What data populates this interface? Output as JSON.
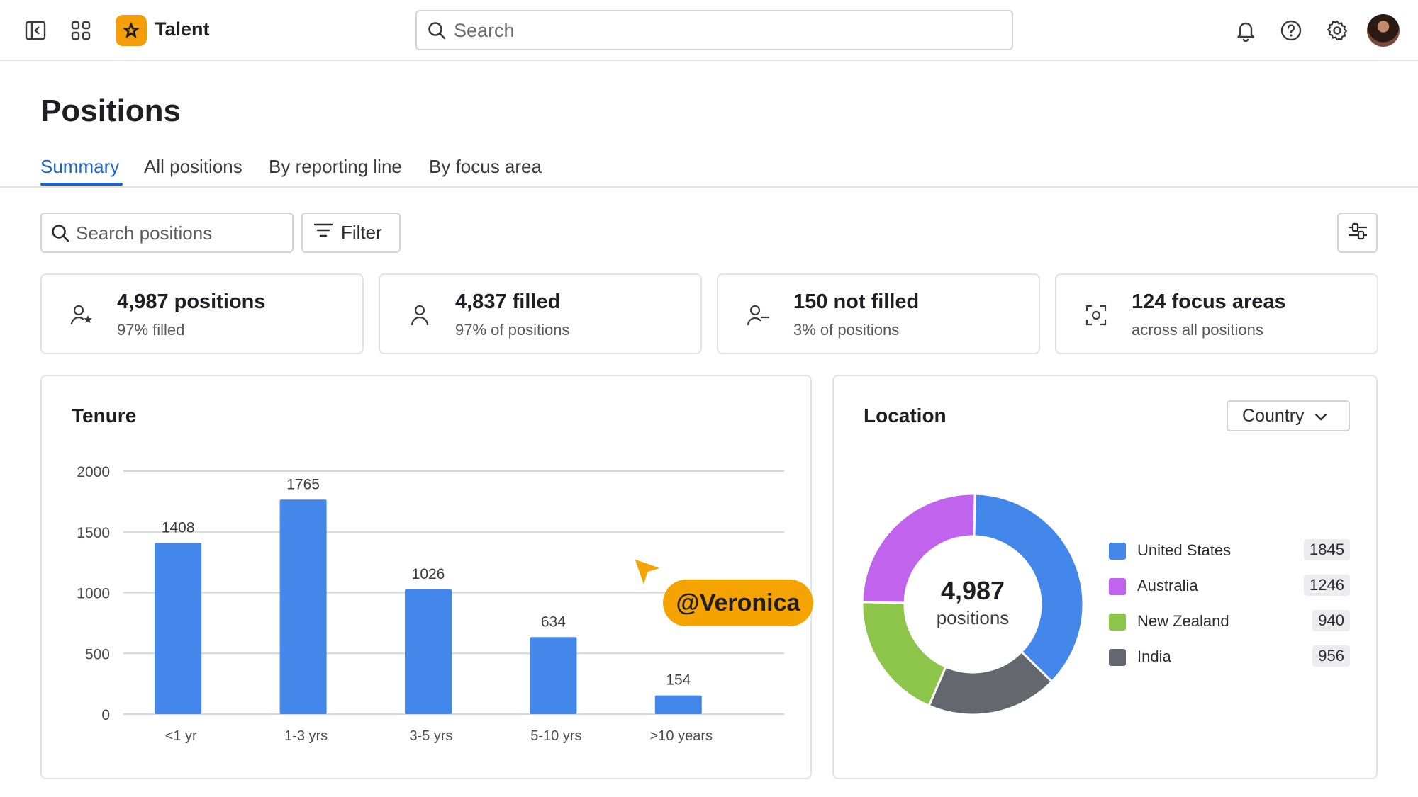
{
  "app": {
    "name": "Talent"
  },
  "topbar": {
    "search_placeholder": "Search",
    "icons": [
      "sidebar-toggle-icon",
      "apps-grid-icon",
      "star-logo-icon",
      "search-icon",
      "bell-icon",
      "help-icon",
      "gear-icon"
    ]
  },
  "page": {
    "title": "Positions",
    "tabs": [
      {
        "label": "Summary",
        "active": true
      },
      {
        "label": "All positions",
        "active": false
      },
      {
        "label": "By reporting line",
        "active": false
      },
      {
        "label": "By focus area",
        "active": false
      }
    ]
  },
  "toolbar": {
    "search_placeholder": "Search positions",
    "filter_label": "Filter"
  },
  "stats": [
    {
      "title": "4,987 positions",
      "subtitle": "97% filled",
      "icon": "person-star-icon"
    },
    {
      "title": "4,837 filled",
      "subtitle": "97% of positions",
      "icon": "person-icon"
    },
    {
      "title": "150 not filled",
      "subtitle": "3% of positions",
      "icon": "person-minus-icon"
    },
    {
      "title": "124 focus areas",
      "subtitle": "across all positions",
      "icon": "focus-icon"
    }
  ],
  "tenure": {
    "title": "Tenure"
  },
  "location": {
    "title": "Location",
    "group_by": "Country",
    "total": "4,987",
    "total_label": "positions",
    "items": [
      {
        "label": "United States",
        "count": "1845",
        "color": "#4487ea"
      },
      {
        "label": "Australia",
        "count": "1246",
        "color": "#c064ee"
      },
      {
        "label": "New Zealand",
        "count": "940",
        "color": "#8dc44a"
      },
      {
        "label": "India",
        "count": "956",
        "color": "#65676f"
      }
    ]
  },
  "mention": {
    "label": "@Veronica"
  },
  "colors": {
    "accent": "#1f63c8",
    "bar": "#4487ea",
    "brand": "#f59e0b",
    "mention": "#f5a300"
  },
  "chart_data": [
    {
      "type": "bar",
      "title": "Tenure",
      "categories": [
        "<1 yr",
        "1-3 yrs",
        "3-5 yrs",
        "5-10 yrs",
        ">10 years"
      ],
      "values": [
        1408,
        1765,
        1026,
        634,
        154
      ],
      "yticks": [
        0,
        500,
        1000,
        1500,
        2000
      ],
      "ylim": [
        0,
        2000
      ],
      "grid": true,
      "data_labels": true
    },
    {
      "type": "pie",
      "title": "Location",
      "donut": true,
      "categories": [
        "United States",
        "India",
        "New Zealand",
        "Australia"
      ],
      "values": [
        1845,
        956,
        940,
        1246
      ],
      "colors": [
        "#4487ea",
        "#65676f",
        "#8dc44a",
        "#c064ee"
      ],
      "legend": "right"
    }
  ]
}
